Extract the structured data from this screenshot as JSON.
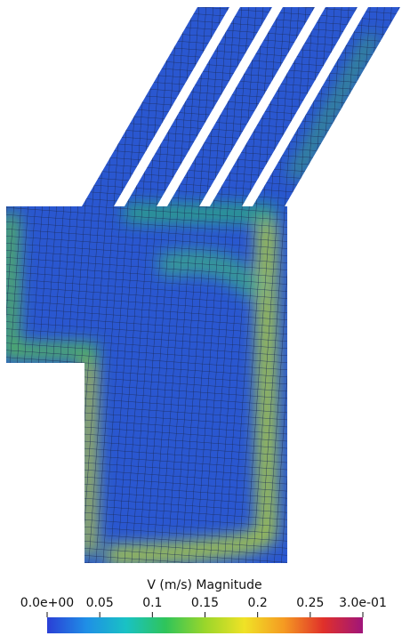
{
  "chart_data": {
    "type": "colorbar",
    "title": "V (m/s) Magnitude",
    "range": [
      0,
      0.3
    ],
    "ticks": [
      {
        "value": 0,
        "label": "0.0e+00"
      },
      0.05,
      0.1,
      0.15,
      0.2,
      0.25,
      {
        "value": 0.3,
        "label": "3.0e-01"
      }
    ],
    "colors": [
      "#2a3fd6",
      "#1f8fe6",
      "#19c2c4",
      "#2fc45a",
      "#9ad62a",
      "#f0e226",
      "#f59a22",
      "#e0302a",
      "#a0157a"
    ]
  }
}
